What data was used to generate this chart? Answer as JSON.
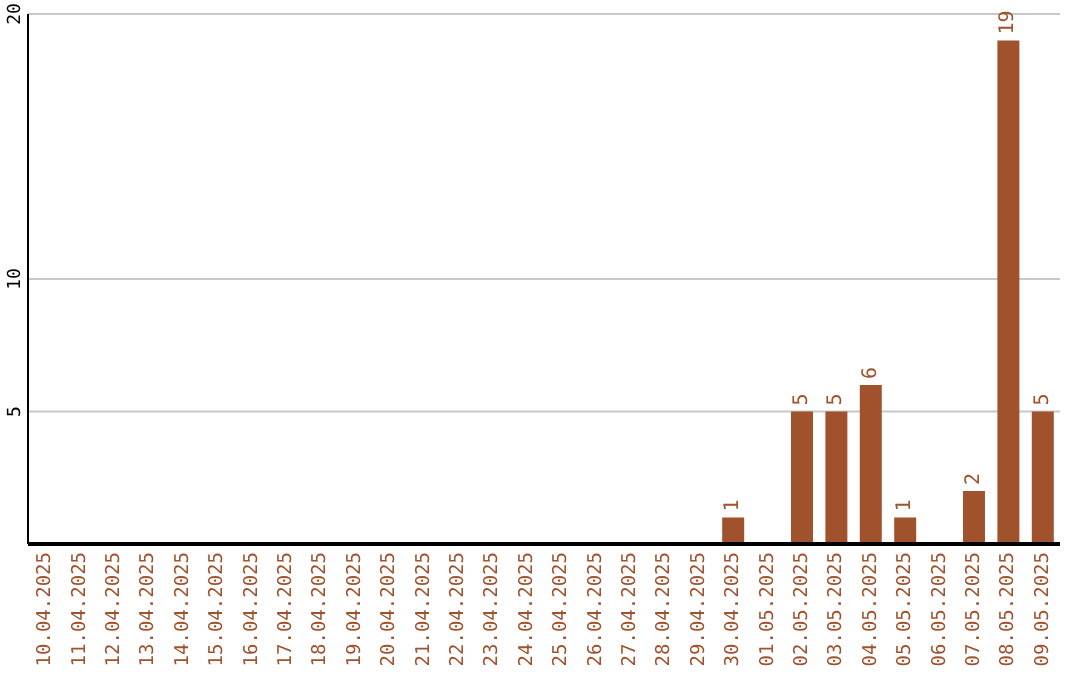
{
  "chart_data": {
    "type": "bar",
    "categories": [
      "10.04.2025",
      "11.04.2025",
      "12.04.2025",
      "13.04.2025",
      "14.04.2025",
      "15.04.2025",
      "16.04.2025",
      "17.04.2025",
      "18.04.2025",
      "19.04.2025",
      "20.04.2025",
      "21.04.2025",
      "22.04.2025",
      "23.04.2025",
      "24.04.2025",
      "25.04.2025",
      "26.04.2025",
      "27.04.2025",
      "28.04.2025",
      "29.04.2025",
      "30.04.2025",
      "01.05.2025",
      "02.05.2025",
      "03.05.2025",
      "04.05.2025",
      "05.05.2025",
      "06.05.2025",
      "07.05.2025",
      "08.05.2025",
      "09.05.2025"
    ],
    "values": [
      0,
      0,
      0,
      0,
      0,
      0,
      0,
      0,
      0,
      0,
      0,
      0,
      0,
      0,
      0,
      0,
      0,
      0,
      0,
      0,
      1,
      0,
      5,
      5,
      6,
      1,
      0,
      2,
      19,
      5
    ],
    "value_labels": [
      null,
      null,
      null,
      null,
      null,
      null,
      null,
      null,
      null,
      null,
      null,
      null,
      null,
      null,
      null,
      null,
      null,
      null,
      null,
      null,
      "1",
      null,
      "5",
      "5",
      "6",
      "1",
      null,
      "2",
      "19",
      "5"
    ],
    "color": "#a0522d",
    "ylim": [
      0,
      20
    ],
    "yticks": [
      5,
      10,
      20
    ],
    "grid": "y"
  }
}
